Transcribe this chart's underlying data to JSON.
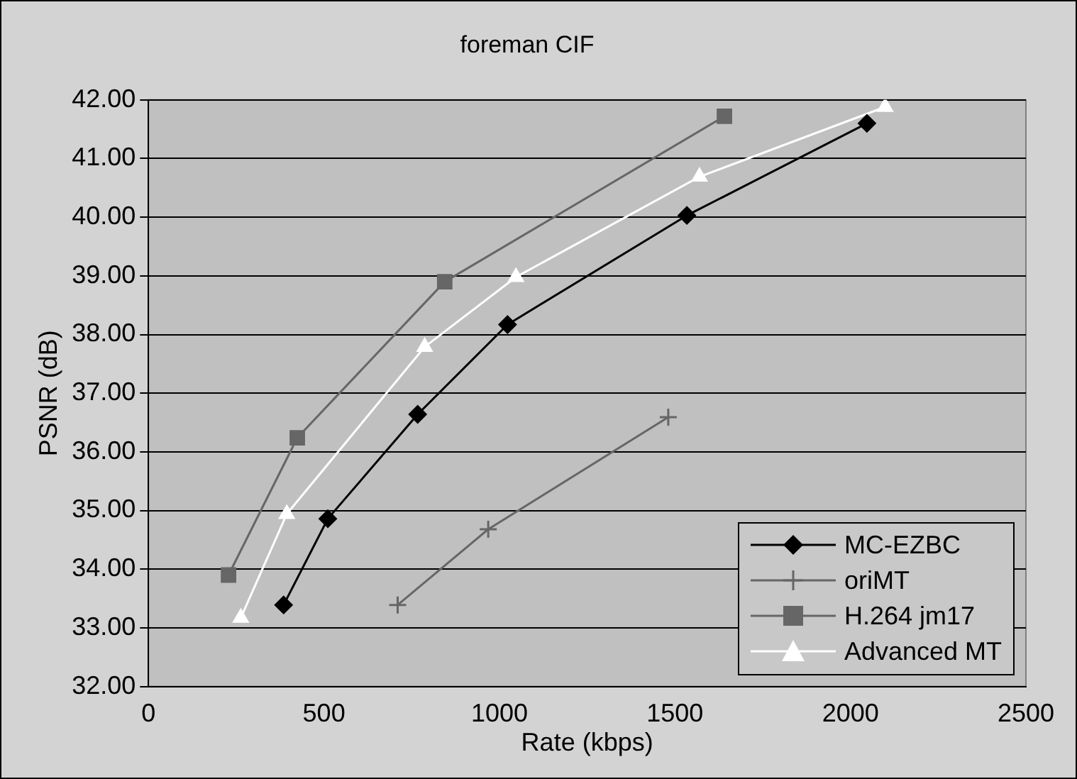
{
  "chart_data": {
    "type": "line",
    "title": "foreman CIF",
    "xlabel": "Rate (kbps)",
    "ylabel": "PSNR (dB)",
    "xlim": [
      0,
      2500
    ],
    "xticks": [
      0,
      500,
      1000,
      1500,
      2000,
      2500
    ],
    "ylim": [
      32,
      42
    ],
    "yticks": [
      {
        "value": 32,
        "label": "32.00"
      },
      {
        "value": 33,
        "label": "33.00"
      },
      {
        "value": 34,
        "label": "34.00"
      },
      {
        "value": 35,
        "label": "35.00"
      },
      {
        "value": 36,
        "label": "36.00"
      },
      {
        "value": 37,
        "label": "37.00"
      },
      {
        "value": 38,
        "label": "38.00"
      },
      {
        "value": 39,
        "label": "39.00"
      },
      {
        "value": 40,
        "label": "40.00"
      },
      {
        "value": 41,
        "label": "41.00"
      },
      {
        "value": 42,
        "label": "42.00"
      }
    ],
    "grid": "y",
    "legend": "bottom right",
    "series": [
      {
        "name": "MC-EZBC",
        "color": "#000000",
        "marker": "diamond",
        "x": [
          385,
          511,
          767,
          1023,
          1534,
          2047
        ],
        "values": [
          33.39,
          34.86,
          36.64,
          38.17,
          40.03,
          41.6
        ]
      },
      {
        "name": "oriMT",
        "color": "#666666",
        "marker": "cross",
        "x": [
          710,
          968,
          1481
        ],
        "values": [
          33.39,
          34.68,
          36.59
        ]
      },
      {
        "name": "H.264 jm17",
        "color": "#666666",
        "marker": "square",
        "x": [
          228,
          424,
          844,
          1641
        ],
        "values": [
          33.9,
          36.24,
          38.9,
          41.72
        ]
      },
      {
        "name": "Advanced MT",
        "color": "#ffffff",
        "marker": "triangle",
        "x": [
          263,
          394,
          787,
          1047,
          1570,
          2099
        ],
        "values": [
          33.17,
          34.94,
          37.79,
          38.98,
          40.69,
          41.88
        ]
      }
    ]
  }
}
